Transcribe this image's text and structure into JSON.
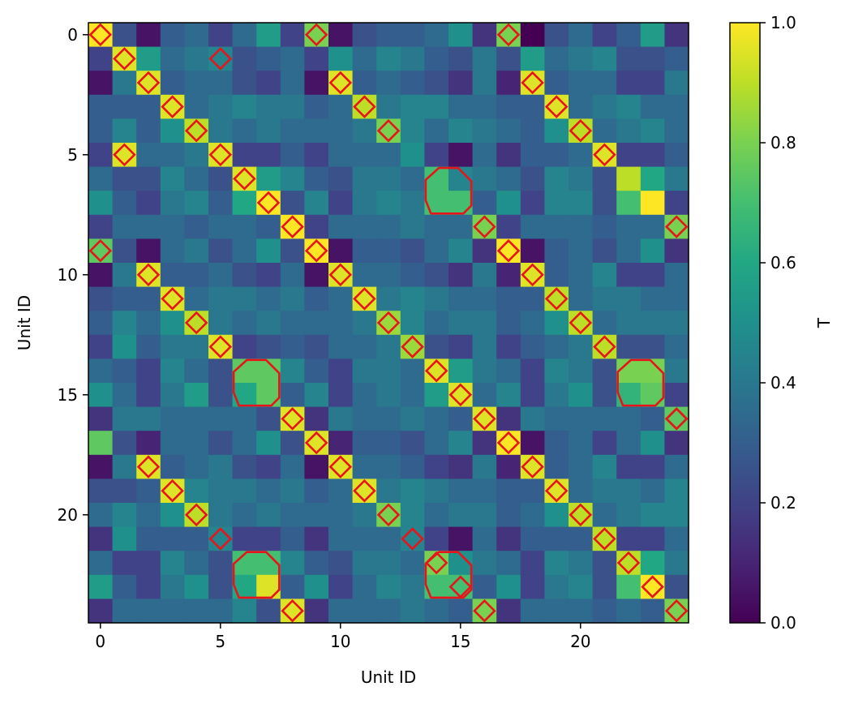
{
  "chart_data": {
    "type": "heatmap",
    "title": "",
    "xlabel": "Unit ID",
    "ylabel": "Unit ID",
    "x_ticks": [
      0,
      5,
      10,
      15,
      20
    ],
    "y_ticks": [
      0,
      5,
      10,
      15,
      20
    ],
    "n": 25,
    "colormap": "viridis",
    "colorbar": {
      "label": "T",
      "min": 0.0,
      "max": 1.0,
      "ticks": [
        "0.0",
        "0.2",
        "0.4",
        "0.6",
        "0.8",
        "1.0"
      ]
    },
    "marker_color": "#e8141b",
    "matrix": [
      [
        1.0,
        0.25,
        0.05,
        0.3,
        0.35,
        0.2,
        0.35,
        0.55,
        0.2,
        0.8,
        0.05,
        0.25,
        0.3,
        0.3,
        0.35,
        0.5,
        0.15,
        0.8,
        0.0,
        0.25,
        0.35,
        0.2,
        0.3,
        0.55,
        0.15
      ],
      [
        0.2,
        0.95,
        0.55,
        0.35,
        0.4,
        0.45,
        0.25,
        0.3,
        0.35,
        0.2,
        0.5,
        0.35,
        0.45,
        0.4,
        0.3,
        0.25,
        0.4,
        0.25,
        0.55,
        0.35,
        0.4,
        0.45,
        0.25,
        0.25,
        0.3
      ],
      [
        0.05,
        0.4,
        0.95,
        0.3,
        0.35,
        0.35,
        0.25,
        0.2,
        0.35,
        0.05,
        0.95,
        0.3,
        0.35,
        0.3,
        0.25,
        0.15,
        0.4,
        0.1,
        0.95,
        0.3,
        0.35,
        0.35,
        0.2,
        0.2,
        0.4
      ],
      [
        0.3,
        0.3,
        0.3,
        0.95,
        0.35,
        0.4,
        0.45,
        0.4,
        0.4,
        0.3,
        0.35,
        0.9,
        0.4,
        0.45,
        0.45,
        0.35,
        0.35,
        0.3,
        0.3,
        0.95,
        0.35,
        0.4,
        0.45,
        0.35,
        0.35
      ],
      [
        0.3,
        0.45,
        0.3,
        0.5,
        0.9,
        0.4,
        0.35,
        0.4,
        0.35,
        0.35,
        0.35,
        0.4,
        0.8,
        0.45,
        0.35,
        0.45,
        0.4,
        0.35,
        0.3,
        0.5,
        0.9,
        0.35,
        0.4,
        0.45,
        0.35
      ],
      [
        0.2,
        0.95,
        0.35,
        0.35,
        0.4,
        0.95,
        0.2,
        0.2,
        0.3,
        0.2,
        0.35,
        0.35,
        0.35,
        0.5,
        0.2,
        0.05,
        0.35,
        0.15,
        0.3,
        0.3,
        0.35,
        0.95,
        0.2,
        0.2,
        0.3
      ],
      [
        0.35,
        0.25,
        0.25,
        0.45,
        0.35,
        0.25,
        0.95,
        0.55,
        0.45,
        0.3,
        0.25,
        0.4,
        0.4,
        0.35,
        0.7,
        0.45,
        0.4,
        0.35,
        0.25,
        0.45,
        0.4,
        0.25,
        0.9,
        0.6,
        0.4
      ],
      [
        0.5,
        0.3,
        0.2,
        0.4,
        0.45,
        0.3,
        0.6,
        1.0,
        0.25,
        0.45,
        0.2,
        0.4,
        0.45,
        0.4,
        0.7,
        0.7,
        0.3,
        0.5,
        0.2,
        0.45,
        0.45,
        0.25,
        0.7,
        1.0,
        0.2
      ],
      [
        0.2,
        0.35,
        0.35,
        0.35,
        0.3,
        0.35,
        0.35,
        0.3,
        1.0,
        0.2,
        0.35,
        0.35,
        0.35,
        0.4,
        0.35,
        0.35,
        0.8,
        0.2,
        0.35,
        0.35,
        0.35,
        0.3,
        0.35,
        0.35,
        0.8
      ],
      [
        0.75,
        0.25,
        0.05,
        0.35,
        0.4,
        0.25,
        0.35,
        0.5,
        0.25,
        1.0,
        0.05,
        0.3,
        0.3,
        0.25,
        0.35,
        0.45,
        0.15,
        1.0,
        0.05,
        0.3,
        0.35,
        0.25,
        0.35,
        0.5,
        0.15
      ],
      [
        0.05,
        0.4,
        0.95,
        0.3,
        0.3,
        0.35,
        0.25,
        0.2,
        0.35,
        0.05,
        0.95,
        0.35,
        0.35,
        0.3,
        0.25,
        0.15,
        0.4,
        0.1,
        0.95,
        0.3,
        0.35,
        0.45,
        0.2,
        0.2,
        0.35
      ],
      [
        0.25,
        0.3,
        0.3,
        0.95,
        0.35,
        0.4,
        0.4,
        0.35,
        0.4,
        0.3,
        0.35,
        0.95,
        0.4,
        0.45,
        0.4,
        0.35,
        0.35,
        0.3,
        0.3,
        0.9,
        0.35,
        0.4,
        0.4,
        0.35,
        0.35
      ],
      [
        0.3,
        0.45,
        0.35,
        0.5,
        0.9,
        0.4,
        0.35,
        0.4,
        0.35,
        0.35,
        0.35,
        0.4,
        0.85,
        0.45,
        0.35,
        0.4,
        0.4,
        0.3,
        0.35,
        0.5,
        0.9,
        0.35,
        0.4,
        0.4,
        0.4
      ],
      [
        0.2,
        0.5,
        0.3,
        0.4,
        0.4,
        0.95,
        0.2,
        0.25,
        0.3,
        0.25,
        0.35,
        0.35,
        0.4,
        0.85,
        0.25,
        0.2,
        0.4,
        0.2,
        0.3,
        0.35,
        0.4,
        0.9,
        0.25,
        0.25,
        0.35
      ],
      [
        0.35,
        0.3,
        0.2,
        0.45,
        0.35,
        0.25,
        0.75,
        0.75,
        0.45,
        0.3,
        0.2,
        0.4,
        0.4,
        0.35,
        0.95,
        0.55,
        0.4,
        0.35,
        0.2,
        0.45,
        0.4,
        0.25,
        0.8,
        0.8,
        0.4
      ],
      [
        0.5,
        0.35,
        0.2,
        0.4,
        0.55,
        0.25,
        0.6,
        0.75,
        0.3,
        0.45,
        0.2,
        0.35,
        0.4,
        0.35,
        0.55,
        0.95,
        0.35,
        0.45,
        0.2,
        0.4,
        0.5,
        0.25,
        0.65,
        0.75,
        0.2
      ],
      [
        0.15,
        0.4,
        0.4,
        0.35,
        0.35,
        0.35,
        0.35,
        0.25,
        0.95,
        0.15,
        0.4,
        0.35,
        0.35,
        0.4,
        0.35,
        0.3,
        0.95,
        0.15,
        0.4,
        0.35,
        0.35,
        0.35,
        0.35,
        0.3,
        0.75
      ],
      [
        0.75,
        0.25,
        0.1,
        0.35,
        0.35,
        0.25,
        0.35,
        0.5,
        0.25,
        0.95,
        0.1,
        0.3,
        0.3,
        0.25,
        0.35,
        0.45,
        0.15,
        1.0,
        0.05,
        0.3,
        0.35,
        0.2,
        0.35,
        0.5,
        0.15
      ],
      [
        0.05,
        0.4,
        0.95,
        0.3,
        0.35,
        0.4,
        0.25,
        0.2,
        0.35,
        0.05,
        0.95,
        0.35,
        0.35,
        0.3,
        0.2,
        0.15,
        0.4,
        0.1,
        0.95,
        0.3,
        0.35,
        0.45,
        0.2,
        0.2,
        0.35
      ],
      [
        0.25,
        0.25,
        0.3,
        0.95,
        0.45,
        0.4,
        0.4,
        0.35,
        0.4,
        0.3,
        0.35,
        0.95,
        0.4,
        0.45,
        0.4,
        0.35,
        0.35,
        0.3,
        0.3,
        0.95,
        0.35,
        0.4,
        0.4,
        0.35,
        0.45
      ],
      [
        0.35,
        0.45,
        0.35,
        0.5,
        0.9,
        0.4,
        0.35,
        0.4,
        0.35,
        0.35,
        0.35,
        0.4,
        0.8,
        0.45,
        0.35,
        0.4,
        0.4,
        0.3,
        0.35,
        0.5,
        0.9,
        0.35,
        0.4,
        0.45,
        0.45
      ],
      [
        0.15,
        0.5,
        0.3,
        0.3,
        0.3,
        0.45,
        0.2,
        0.2,
        0.3,
        0.15,
        0.35,
        0.35,
        0.35,
        0.45,
        0.2,
        0.05,
        0.35,
        0.15,
        0.3,
        0.3,
        0.3,
        0.9,
        0.2,
        0.2,
        0.35
      ],
      [
        0.35,
        0.2,
        0.2,
        0.45,
        0.35,
        0.25,
        0.7,
        0.7,
        0.45,
        0.3,
        0.25,
        0.4,
        0.4,
        0.35,
        0.8,
        0.5,
        0.4,
        0.35,
        0.2,
        0.45,
        0.4,
        0.25,
        0.9,
        0.6,
        0.4
      ],
      [
        0.55,
        0.3,
        0.2,
        0.4,
        0.5,
        0.25,
        0.6,
        0.95,
        0.3,
        0.5,
        0.2,
        0.35,
        0.45,
        0.4,
        0.7,
        0.7,
        0.3,
        0.5,
        0.2,
        0.4,
        0.45,
        0.25,
        0.7,
        1.0,
        0.25
      ],
      [
        0.15,
        0.35,
        0.35,
        0.35,
        0.35,
        0.35,
        0.45,
        0.25,
        0.95,
        0.15,
        0.35,
        0.35,
        0.35,
        0.4,
        0.35,
        0.3,
        0.8,
        0.15,
        0.35,
        0.35,
        0.35,
        0.3,
        0.35,
        0.3,
        0.8
      ]
    ],
    "diamond_markers": [
      [
        1,
        1
      ],
      [
        2,
        2
      ],
      [
        3,
        3
      ],
      [
        4,
        4
      ],
      [
        5,
        5
      ],
      [
        6,
        6
      ],
      [
        7,
        7
      ],
      [
        8,
        8
      ],
      [
        9,
        9
      ],
      [
        10,
        10
      ],
      [
        11,
        11
      ],
      [
        12,
        12
      ],
      [
        13,
        13
      ],
      [
        14,
        14
      ],
      [
        15,
        15
      ],
      [
        16,
        16
      ],
      [
        17,
        17
      ],
      [
        18,
        18
      ],
      [
        19,
        19
      ],
      [
        20,
        20
      ],
      [
        21,
        21
      ],
      [
        22,
        22
      ],
      [
        23,
        23
      ],
      [
        1,
        5
      ],
      [
        2,
        10
      ],
      [
        2,
        18
      ],
      [
        3,
        11
      ],
      [
        3,
        19
      ],
      [
        4,
        12
      ],
      [
        4,
        20
      ],
      [
        5,
        1
      ],
      [
        5,
        21
      ],
      [
        8,
        16
      ],
      [
        9,
        17
      ],
      [
        10,
        2
      ],
      [
        10,
        18
      ],
      [
        11,
        3
      ],
      [
        11,
        19
      ],
      [
        12,
        4
      ],
      [
        12,
        20
      ],
      [
        13,
        5
      ],
      [
        13,
        21
      ],
      [
        16,
        8
      ],
      [
        16,
        24
      ],
      [
        17,
        9
      ],
      [
        18,
        2
      ],
      [
        18,
        10
      ],
      [
        19,
        3
      ],
      [
        19,
        11
      ],
      [
        20,
        4
      ],
      [
        20,
        12
      ],
      [
        21,
        5
      ],
      [
        21,
        13
      ],
      [
        22,
        14
      ],
      [
        23,
        15
      ]
    ],
    "edge_markers": [
      [
        0,
        0
      ],
      [
        0,
        9
      ],
      [
        0,
        17
      ],
      [
        8,
        24
      ],
      [
        9,
        0
      ],
      [
        16,
        24
      ],
      [
        24,
        8
      ],
      [
        24,
        16
      ],
      [
        24,
        24
      ]
    ],
    "cluster_outlines": [
      {
        "rows": [
          6,
          7
        ],
        "cols": [
          14,
          15
        ]
      },
      {
        "rows": [
          14,
          15
        ],
        "cols": [
          6,
          7
        ]
      },
      {
        "rows": [
          14,
          15
        ],
        "cols": [
          22,
          23
        ]
      },
      {
        "rows": [
          22,
          23
        ],
        "cols": [
          6,
          7
        ]
      },
      {
        "rows": [
          22,
          23
        ],
        "cols": [
          14,
          15
        ]
      }
    ]
  }
}
